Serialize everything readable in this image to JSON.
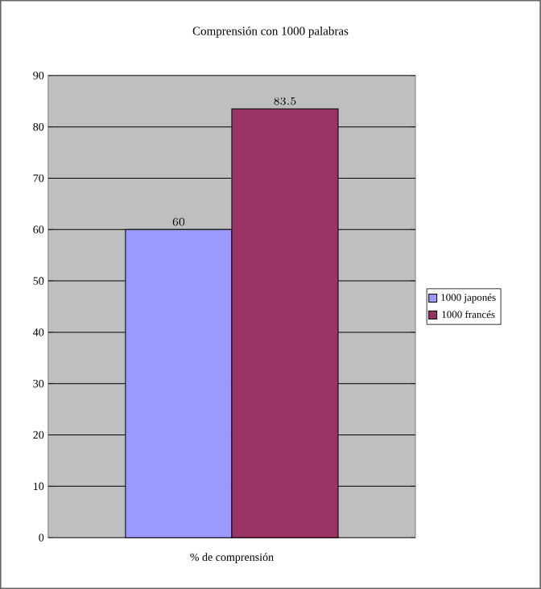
{
  "chart_data": {
    "type": "bar",
    "title": "Comprensión con 1000 palabras",
    "categories": [
      "% de comprensión"
    ],
    "series": [
      {
        "name": "1000 japonés",
        "color": "#9999ff",
        "values": [
          60
        ]
      },
      {
        "name": "1000 francés",
        "color": "#993366",
        "values": [
          83.5
        ]
      }
    ],
    "ylim": [
      0,
      90
    ],
    "yticks": [
      0,
      10,
      20,
      30,
      40,
      50,
      60,
      70,
      80,
      90
    ],
    "grid": "y",
    "legend": "right",
    "data_labels": true
  }
}
